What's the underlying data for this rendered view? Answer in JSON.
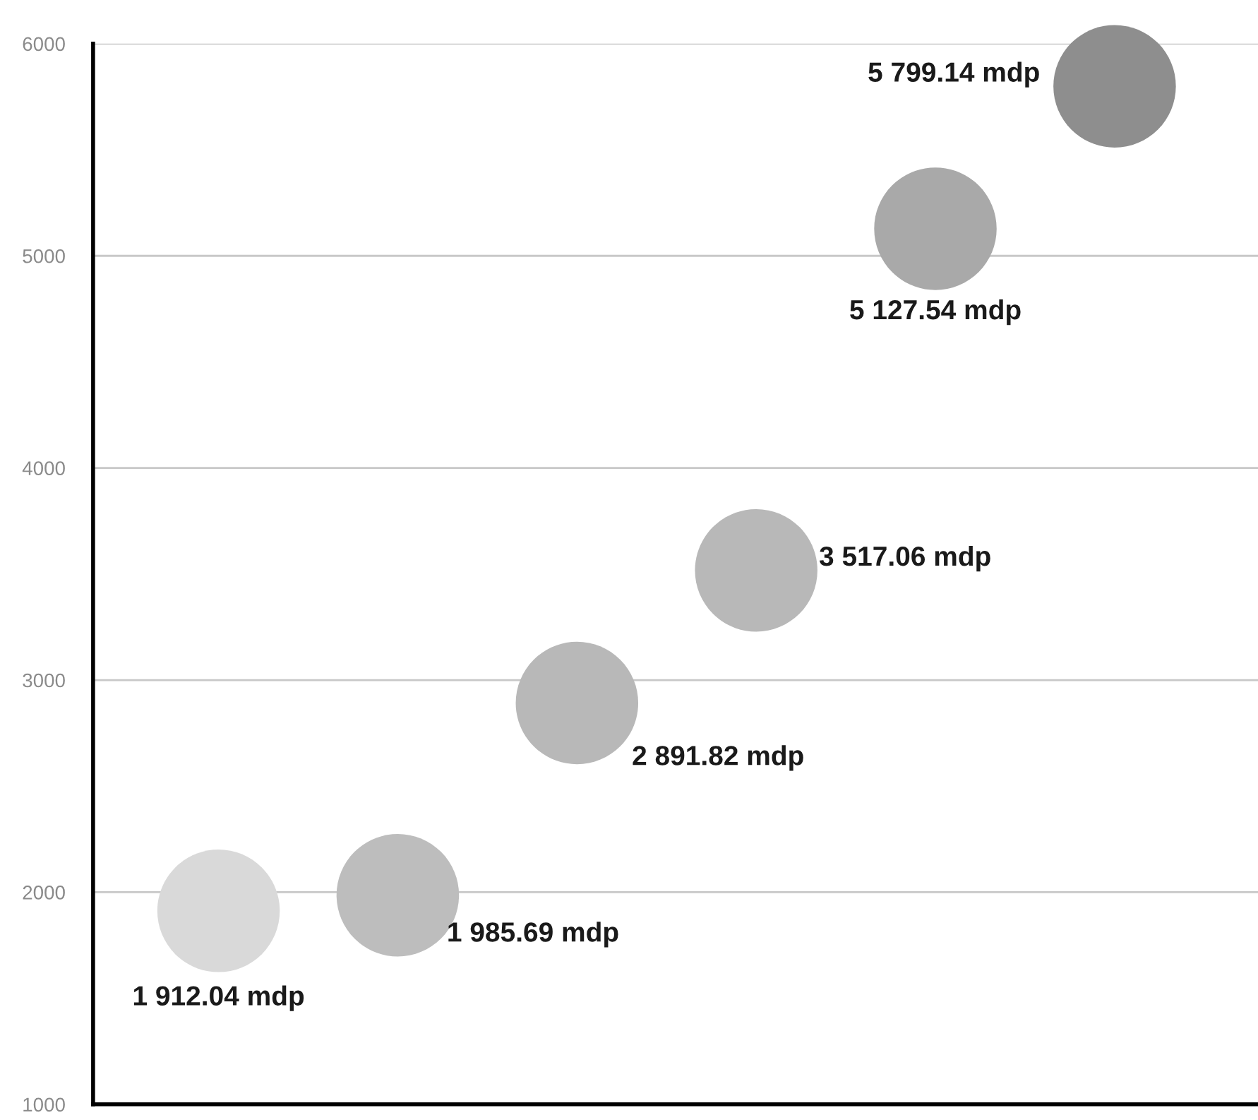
{
  "chart_data": {
    "type": "scatter",
    "categories": [
      null,
      null,
      null,
      null,
      null,
      null
    ],
    "values": [
      1912.04,
      1985.69,
      2891.82,
      3517.06,
      5127.54,
      5799.14
    ],
    "colors": [
      "#d9d9d9",
      "#bdbdbd",
      "#b8b8b8",
      "#b8b8b8",
      "#a9a9a9",
      "#8e8e8e"
    ],
    "value_labels": [
      "1 912.04 mdp",
      "1 985.69 mdp",
      "2 891.82 mdp",
      "3 517.06 mdp",
      "5 127.54 mdp",
      "5 799.14 mdp"
    ],
    "ylim": [
      1000,
      6000
    ],
    "yticks": [
      1000,
      2000,
      3000,
      4000,
      5000,
      6000
    ],
    "grid": "y",
    "tick_labels": "y"
  }
}
